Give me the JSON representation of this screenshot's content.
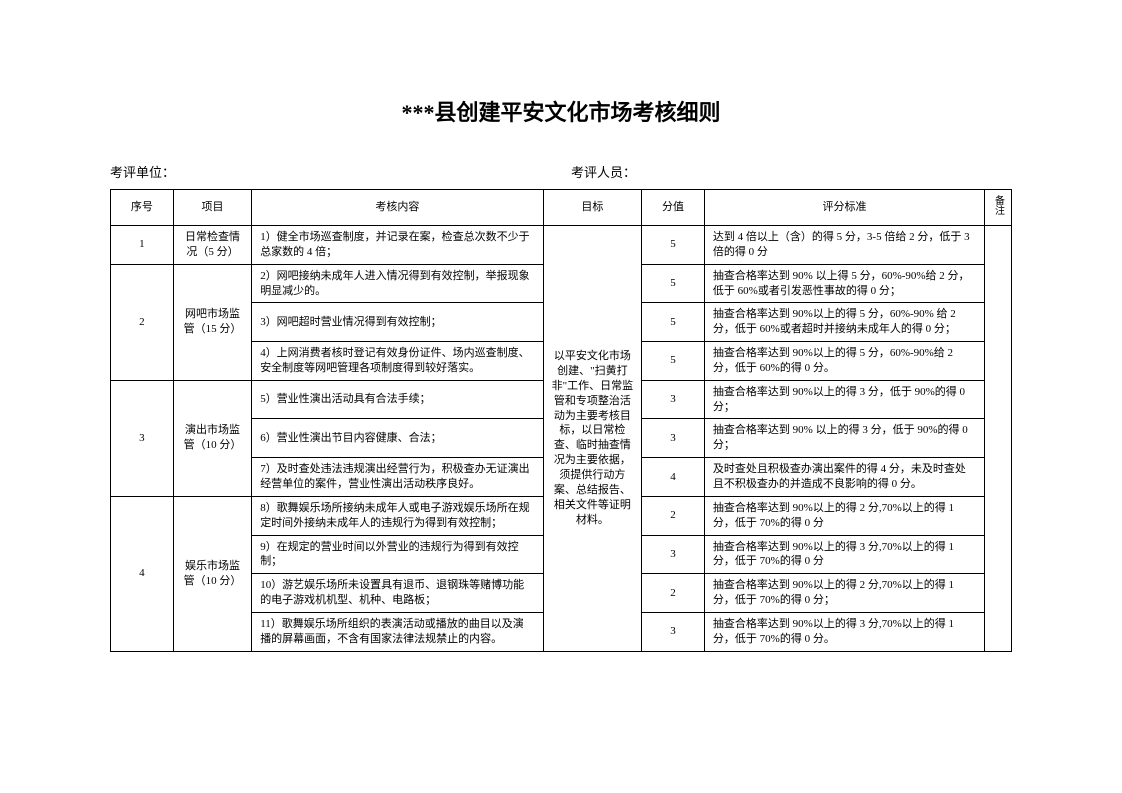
{
  "document": {
    "title": "***县创建平安文化市场考核细则",
    "unit_label": "考评单位：",
    "staff_label": "考评人员："
  },
  "headers": {
    "seq": "序号",
    "project": "项目",
    "content": "考核内容",
    "target": "目标",
    "score": "分值",
    "criteria": "评分标准",
    "note": "备注"
  },
  "target_text": "以平安文化市场创建、\"扫黄打非\"工作、日常监管和专项整治活动为主要考核目标，以日常检查、临时抽查情况为主要依据，须提供行动方案、总结报告、相关文件等证明材料。",
  "sections": [
    {
      "seq": "1",
      "project": "日常检查情况（5 分）",
      "rows": [
        {
          "content": "1）健全市场巡查制度，并记录在案，检查总次数不少于总家数的 4 倍；",
          "score": "5",
          "criteria": "达到 4 倍以上（含）的得 5 分，3-5 倍给 2 分，低于 3 倍的得 0 分"
        }
      ]
    },
    {
      "seq": "2",
      "project": "网吧市场监管（15 分）",
      "rows": [
        {
          "content": "2）网吧接纳未成年人进入情况得到有效控制，举报现象明显减少的。",
          "score": "5",
          "criteria": "抽查合格率达到 90% 以上得 5 分，60%-90%给 2 分，低于 60%或者引发恶性事故的得 0 分；"
        },
        {
          "content": "3）网吧超时营业情况得到有效控制；",
          "score": "5",
          "criteria": "抽查合格率达到 90%以上的得 5 分，60%-90% 给 2 分，低于 60%或者超时并接纳未成年人的得 0 分；"
        },
        {
          "content": "4）上网消费者核时登记有效身份证件、场内巡查制度、安全制度等网吧管理各项制度得到较好落实。",
          "score": "5",
          "criteria": "抽查合格率达到 90%以上的得 5 分，60%-90%给 2 分，低于 60%的得 0 分。"
        }
      ]
    },
    {
      "seq": "3",
      "project": "演出市场监管（10 分）",
      "rows": [
        {
          "content": "5）营业性演出活动具有合法手续；",
          "score": "3",
          "criteria": "抽查合格率达到 90%以上的得 3 分，低于 90%的得 0 分；"
        },
        {
          "content": "6）营业性演出节目内容健康、合法；",
          "score": "3",
          "criteria": "抽查合格率达到 90% 以上的得 3 分，低于 90%的得 0 分；"
        },
        {
          "content": "7）及时查处违法违规演出经营行为，积极查办无证演出经营单位的案件，营业性演出活动秩序良好。",
          "score": "4",
          "criteria": "及时查处且积极查办演出案件的得 4 分，未及时查处且不积极查办的并造成不良影响的得 0 分。"
        }
      ]
    },
    {
      "seq": "4",
      "project": "娱乐市场监管（10 分）",
      "rows": [
        {
          "content": "8）歌舞娱乐场所接纳未成年人或电子游戏娱乐场所在规定时间外接纳未成年人的违规行为得到有效控制；",
          "score": "2",
          "criteria": "抽查合格率达到 90%以上的得 2 分,70%以上的得 1 分，低于 70%的得 0 分"
        },
        {
          "content": "9）在规定的营业时间以外营业的违规行为得到有效控制；",
          "score": "3",
          "criteria": "抽查合格率达到 90%以上的得 3 分,70%以上的得 1 分，低于 70%的得 0 分"
        },
        {
          "content": "10）游艺娱乐场所未设置具有退币、退钢珠等赌博功能的电子游戏机机型、机种、电路板；",
          "score": "2",
          "criteria": "抽查合格率达到 90%以上的得 2 分,70%以上的得 1 分，低于 70%的得 0 分；"
        },
        {
          "content": "11）歌舞娱乐场所组织的表演活动或播放的曲目以及演播的屏幕画面，不含有国家法律法规禁止的内容。",
          "score": "3",
          "criteria": "抽查合格率达到 90%以上的得 3 分,70%以上的得 1 分，低于 70%的得 0 分。"
        }
      ]
    }
  ]
}
